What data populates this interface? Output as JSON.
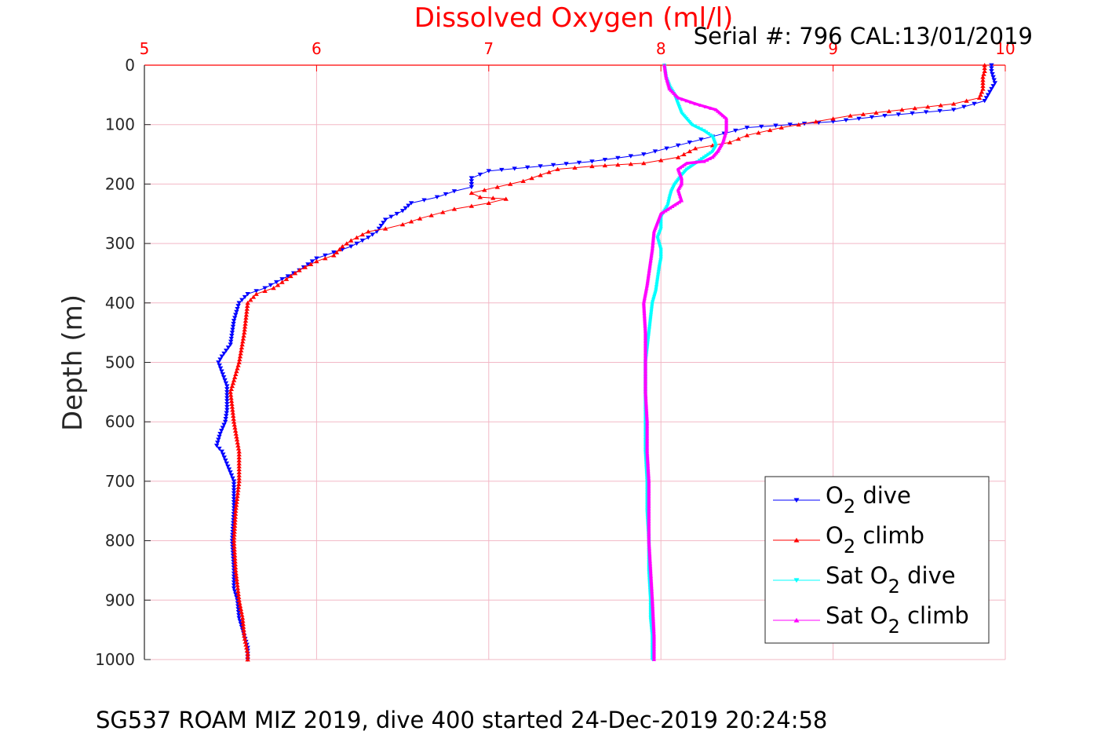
{
  "chart_data": {
    "type": "scatter",
    "title": "",
    "xlabel": "Dissolved Oxygen (ml/l)",
    "ylabel": "Depth (m)",
    "annotation": "Serial #: 796  CAL:13/01/2019",
    "caption": "SG537 ROAM MIZ 2019, dive 400 started 24-Dec-2019 20:24:58",
    "xlim": [
      5,
      10
    ],
    "ylim": [
      0,
      1000
    ],
    "y_reversed": true,
    "x_axis_position": "top",
    "grid": true,
    "legend_position": "bottom-right",
    "x_ticks": [
      "5",
      "6",
      "7",
      "8",
      "9",
      "10"
    ],
    "y_ticks": [
      "0",
      "100",
      "200",
      "300",
      "400",
      "500",
      "600",
      "700",
      "800",
      "900",
      "1000"
    ],
    "colors": {
      "axis_x": "#ff0000",
      "axis_y": "#262626",
      "grid": "#f2b8c6"
    },
    "series": [
      {
        "name": "O2 dive",
        "legend_parts": [
          "O",
          "2",
          " dive"
        ],
        "color": "#0000ff",
        "marker": "triangle-down",
        "x": [
          9.92,
          9.92,
          9.93,
          9.94,
          9.92,
          9.88,
          9.7,
          9.3,
          9.0,
          8.5,
          8.3,
          8.1,
          7.9,
          7.6,
          7.3,
          7.0,
          6.9,
          6.9,
          6.8,
          6.7,
          6.55,
          6.5,
          6.4,
          6.35,
          6.3,
          6.2,
          6.1,
          6.0,
          5.9,
          5.8,
          5.7,
          5.6,
          5.55,
          5.52,
          5.5,
          5.45,
          5.43,
          5.48,
          5.48,
          5.47,
          5.44,
          5.42,
          5.45,
          5.52,
          5.52,
          5.51,
          5.52,
          5.52,
          5.54,
          5.55,
          5.58,
          5.6,
          5.6
        ],
        "y": [
          0,
          10,
          20,
          30,
          40,
          60,
          75,
          85,
          95,
          105,
          120,
          135,
          150,
          162,
          170,
          178,
          190,
          205,
          212,
          222,
          232,
          245,
          260,
          280,
          290,
          305,
          315,
          325,
          345,
          360,
          375,
          385,
          400,
          430,
          470,
          490,
          500,
          540,
          580,
          600,
          620,
          640,
          650,
          700,
          750,
          800,
          850,
          880,
          900,
          930,
          960,
          980,
          1000
        ]
      },
      {
        "name": "O2 climb",
        "legend_parts": [
          "O",
          "2",
          " climb"
        ],
        "color": "#ff0000",
        "marker": "triangle-up",
        "x": [
          9.88,
          9.88,
          9.87,
          9.87,
          9.85,
          9.7,
          9.4,
          9.1,
          8.9,
          8.7,
          8.5,
          8.4,
          8.2,
          8.1,
          7.9,
          7.6,
          7.4,
          7.3,
          7.2,
          7.05,
          6.9,
          6.95,
          7.1,
          7.0,
          6.8,
          6.6,
          6.5,
          6.4,
          6.3,
          6.2,
          6.15,
          6.1,
          6.0,
          5.9,
          5.85,
          5.8,
          5.75,
          5.65,
          5.6,
          5.58,
          5.55,
          5.5,
          5.52,
          5.55,
          5.55,
          5.53,
          5.52,
          5.53,
          5.55,
          5.57,
          5.58,
          5.6,
          5.6
        ],
        "y": [
          0,
          10,
          20,
          40,
          55,
          65,
          75,
          85,
          95,
          105,
          118,
          130,
          140,
          155,
          165,
          170,
          175,
          185,
          195,
          205,
          215,
          222,
          225,
          232,
          242,
          258,
          268,
          275,
          280,
          295,
          305,
          320,
          330,
          345,
          355,
          365,
          375,
          385,
          400,
          450,
          500,
          550,
          600,
          650,
          700,
          750,
          800,
          850,
          900,
          930,
          960,
          990,
          1000
        ]
      },
      {
        "name": "Sat O2 dive",
        "legend_parts": [
          "Sat O",
          "2",
          " dive"
        ],
        "color": "#00ffff",
        "marker": "triangle-down",
        "x": [
          8.02,
          8.03,
          8.05,
          8.08,
          8.1,
          8.12,
          8.18,
          8.25,
          8.3,
          8.32,
          8.3,
          8.25,
          8.2,
          8.15,
          8.12,
          8.08,
          8.06,
          8.05,
          8.04,
          8.0,
          8.0,
          7.98,
          8.0,
          8.0,
          7.99,
          7.98,
          7.97,
          7.95,
          7.93,
          7.91,
          7.91,
          7.91,
          7.91,
          7.92,
          7.92,
          7.93,
          7.93,
          7.94,
          7.94,
          7.95,
          7.95
        ],
        "y": [
          0,
          20,
          35,
          50,
          65,
          80,
          100,
          110,
          120,
          135,
          145,
          155,
          165,
          175,
          185,
          200,
          212,
          222,
          235,
          255,
          275,
          290,
          310,
          325,
          340,
          360,
          380,
          400,
          450,
          500,
          550,
          600,
          650,
          700,
          750,
          800,
          850,
          900,
          930,
          960,
          1000
        ]
      },
      {
        "name": "Sat O2 climb",
        "legend_parts": [
          "Sat O",
          "2",
          " climb"
        ],
        "color": "#ff00ff",
        "marker": "triangle-up",
        "x": [
          8.02,
          8.03,
          8.05,
          8.1,
          8.2,
          8.32,
          8.38,
          8.38,
          8.36,
          8.33,
          8.3,
          8.25,
          8.15,
          8.1,
          8.12,
          8.12,
          8.1,
          8.12,
          8.0,
          7.96,
          7.95,
          7.94,
          7.93,
          7.92,
          7.9,
          7.91,
          7.91,
          7.91,
          7.92,
          7.92,
          7.93,
          7.93,
          7.93,
          7.94,
          7.95,
          7.96,
          7.96
        ],
        "y": [
          0,
          20,
          40,
          55,
          65,
          75,
          90,
          110,
          130,
          145,
          155,
          162,
          165,
          175,
          190,
          200,
          210,
          228,
          250,
          280,
          310,
          330,
          350,
          370,
          400,
          450,
          500,
          550,
          600,
          650,
          700,
          750,
          800,
          850,
          900,
          960,
          1000
        ]
      }
    ]
  }
}
